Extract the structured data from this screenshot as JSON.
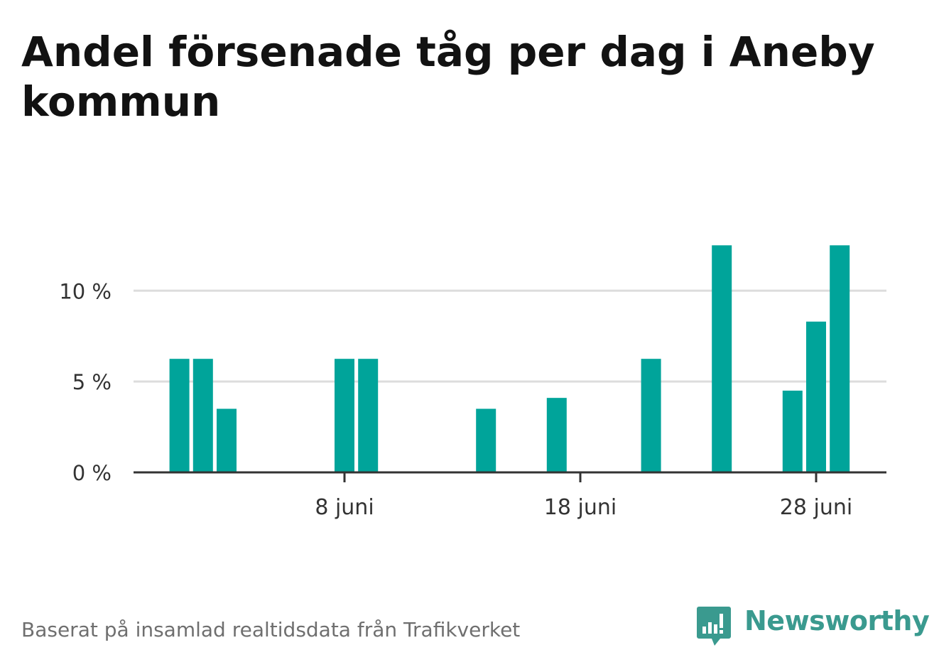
{
  "title": "Andel försenade tåg per dag i Aneby kommun",
  "footer": "Baserat på insamlad realtidsdata från Trafikverket",
  "logo": {
    "text": "Newsworthy",
    "icon": "newsworthy-chart-bubble-icon"
  },
  "colors": {
    "bar": "#00a49a",
    "grid": "#dddddd",
    "axis": "#333333",
    "text": "#333333",
    "brand": "#3a9a8f"
  },
  "chart_data": {
    "type": "bar",
    "unit": "%",
    "x": [
      "2024-06-01",
      "2024-06-02",
      "2024-06-03",
      "2024-06-04",
      "2024-06-05",
      "2024-06-06",
      "2024-06-07",
      "2024-06-08",
      "2024-06-09",
      "2024-06-10",
      "2024-06-11",
      "2024-06-12",
      "2024-06-13",
      "2024-06-14",
      "2024-06-15",
      "2024-06-16",
      "2024-06-17",
      "2024-06-18",
      "2024-06-19",
      "2024-06-20",
      "2024-06-21",
      "2024-06-22",
      "2024-06-23",
      "2024-06-24",
      "2024-06-25",
      "2024-06-26",
      "2024-06-27",
      "2024-06-28",
      "2024-06-29",
      "2024-06-30"
    ],
    "values": [
      6.25,
      6.25,
      3.5,
      0,
      0,
      0,
      0,
      6.25,
      6.25,
      0,
      0,
      0,
      0,
      3.5,
      0,
      0,
      4.1,
      0,
      0,
      0,
      6.25,
      0,
      0,
      12.5,
      0,
      0,
      4.5,
      8.3,
      12.5,
      0
    ],
    "ylim": [
      0,
      13.5
    ],
    "yticks": [
      0,
      5,
      10
    ],
    "ytick_labels": [
      "0 %",
      "5 %",
      "10 %"
    ],
    "xticks": [
      "2024-06-08",
      "2024-06-18",
      "2024-06-28"
    ],
    "xtick_labels": [
      "8 juni",
      "18 juni",
      "28 juni"
    ],
    "grid": true
  }
}
